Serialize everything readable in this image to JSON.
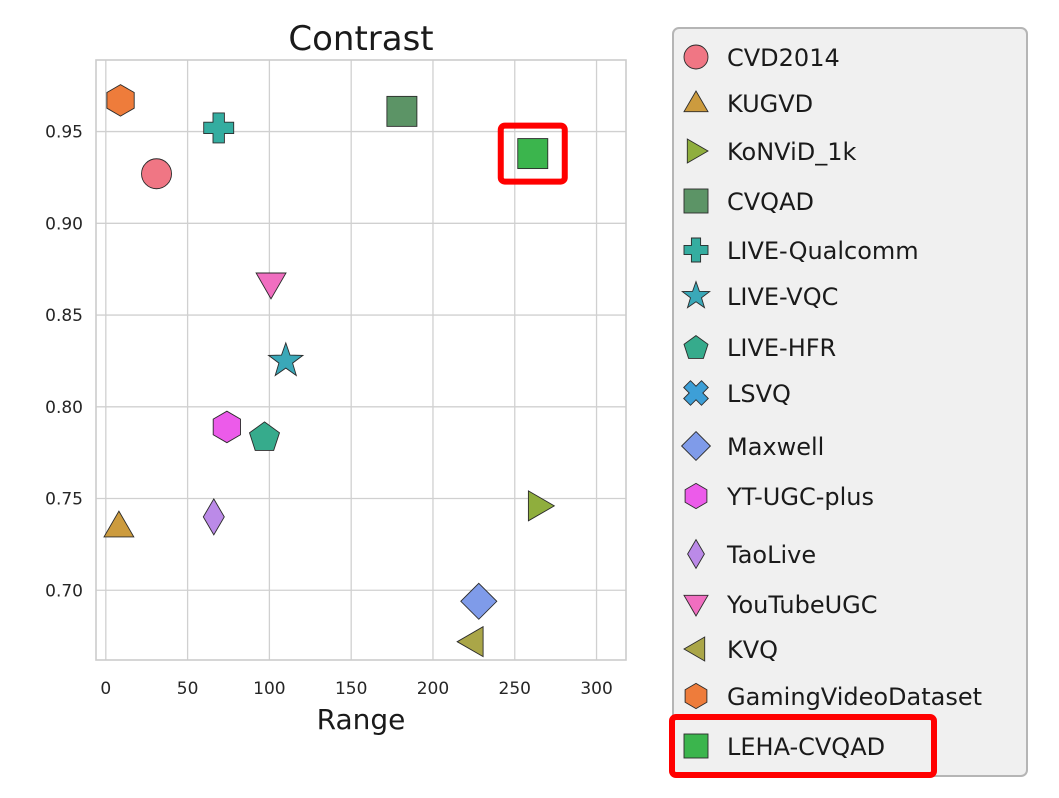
{
  "chart_data": {
    "type": "scatter",
    "title": "Contrast",
    "xlabel": "Range",
    "ylabel": "",
    "xlim": [
      -6,
      318
    ],
    "ylim": [
      0.662,
      0.989
    ],
    "xticks": [
      0,
      50,
      100,
      150,
      200,
      250,
      300
    ],
    "yticks": [
      0.7,
      0.75,
      0.8,
      0.85,
      0.9,
      0.95
    ],
    "ytick_labels": [
      "0.70",
      "0.75",
      "0.80",
      "0.85",
      "0.90",
      "0.95"
    ],
    "grid": true,
    "legend_placement": "outside-right",
    "series": [
      {
        "name": "CVD2014",
        "marker": "circle",
        "color": "#f07684",
        "x": 31,
        "y": 0.927
      },
      {
        "name": "KUGVD",
        "marker": "triangle-up",
        "color": "#cc9b3e",
        "x": 8,
        "y": 0.735
      },
      {
        "name": "KoNViD_1k",
        "marker": "triangle-right",
        "color": "#8fae3d",
        "x": 265,
        "y": 0.746
      },
      {
        "name": "CVQAD",
        "marker": "square",
        "color": "#5c9466",
        "x": 181,
        "y": 0.961
      },
      {
        "name": "LIVE-Qualcomm",
        "marker": "plus",
        "color": "#34ada0",
        "x": 69,
        "y": 0.952
      },
      {
        "name": "LIVE-VQC",
        "marker": "star",
        "color": "#3aa8b8",
        "x": 110,
        "y": 0.825
      },
      {
        "name": "LIVE-HFR",
        "marker": "pentagon",
        "color": "#36ab8c",
        "x": 97,
        "y": 0.784
      },
      {
        "name": "LSVQ",
        "marker": "x",
        "color": "#3d9fd7",
        "x": null,
        "y": null
      },
      {
        "name": "Maxwell",
        "marker": "diamond",
        "color": "#7f9be9",
        "x": 228,
        "y": 0.694
      },
      {
        "name": "YT-UGC-plus",
        "marker": "hexagon",
        "color": "#ec5bea",
        "x": 74,
        "y": 0.789
      },
      {
        "name": "TaoLive",
        "marker": "thin-diamond",
        "color": "#bb8ae8",
        "x": 66,
        "y": 0.74
      },
      {
        "name": "YouTubeUGC",
        "marker": "triangle-down",
        "color": "#f06ec0",
        "x": 101,
        "y": 0.867
      },
      {
        "name": "KVQ",
        "marker": "triangle-left",
        "color": "#aaa648",
        "x": 224,
        "y": 0.672
      },
      {
        "name": "GamingVideoDataset",
        "marker": "hexagon",
        "color": "#ee7c3b",
        "x": 9,
        "y": 0.967
      },
      {
        "name": "LEHA-CVQAD",
        "marker": "square",
        "color": "#3bb54d",
        "x": 261,
        "y": 0.938
      }
    ],
    "highlight": {
      "series": "LEHA-CVQAD",
      "color": "#ff0000"
    }
  }
}
